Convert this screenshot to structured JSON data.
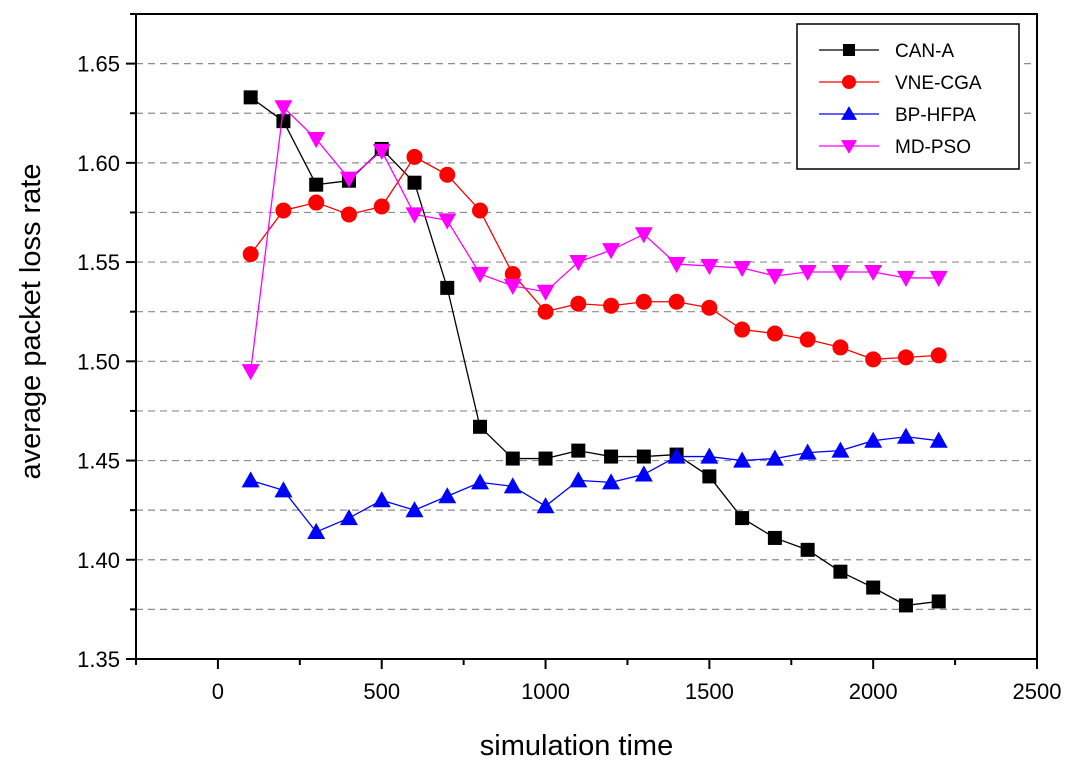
{
  "chart_data": {
    "type": "line",
    "title": "",
    "xlabel": "simulation time",
    "ylabel": "average packet loss rate",
    "xlim": [
      -250,
      2500
    ],
    "ylim": [
      1.35,
      1.675
    ],
    "xticks": [
      0,
      500,
      1000,
      1500,
      2000,
      2500
    ],
    "xtick_labels": [
      "0",
      "500",
      "1000",
      "1500",
      "2000",
      "2500"
    ],
    "yticks": [
      1.35,
      1.4,
      1.45,
      1.5,
      1.55,
      1.6,
      1.65
    ],
    "ytick_labels": [
      "1.35",
      "1.40",
      "1.45",
      "1.50",
      "1.55",
      "1.60",
      "1.65"
    ],
    "grid_y": [
      1.375,
      1.4,
      1.425,
      1.45,
      1.475,
      1.5,
      1.525,
      1.55,
      1.575,
      1.6,
      1.625,
      1.65
    ],
    "legend_position": "top-right",
    "x": [
      100,
      200,
      300,
      400,
      500,
      600,
      700,
      800,
      900,
      1000,
      1100,
      1200,
      1300,
      1400,
      1500,
      1600,
      1700,
      1800,
      1900,
      2000,
      2100,
      2200
    ],
    "series": [
      {
        "name": "CAN-A",
        "color": "#000000",
        "marker": "square",
        "values": [
          1.633,
          1.621,
          1.589,
          1.591,
          1.607,
          1.59,
          1.537,
          1.467,
          1.451,
          1.451,
          1.455,
          1.452,
          1.452,
          1.453,
          1.442,
          1.421,
          1.411,
          1.405,
          1.394,
          1.386,
          1.377,
          1.379
        ]
      },
      {
        "name": "VNE-CGA",
        "color": "#ff0000",
        "marker": "circle",
        "values": [
          1.554,
          1.576,
          1.58,
          1.574,
          1.578,
          1.603,
          1.594,
          1.576,
          1.544,
          1.525,
          1.529,
          1.528,
          1.53,
          1.53,
          1.527,
          1.516,
          1.514,
          1.511,
          1.507,
          1.501,
          1.502,
          1.503
        ]
      },
      {
        "name": "BP-HFPA",
        "color": "#0000ff",
        "marker": "triangle-up",
        "values": [
          1.44,
          1.435,
          1.414,
          1.421,
          1.43,
          1.425,
          1.432,
          1.439,
          1.437,
          1.427,
          1.44,
          1.439,
          1.443,
          1.452,
          1.452,
          1.45,
          1.451,
          1.454,
          1.455,
          1.46,
          1.462,
          1.46
        ]
      },
      {
        "name": "MD-PSO",
        "color": "#ff00ff",
        "marker": "triangle-down",
        "values": [
          1.495,
          1.628,
          1.612,
          1.592,
          1.606,
          1.574,
          1.571,
          1.544,
          1.538,
          1.535,
          1.55,
          1.556,
          1.564,
          1.549,
          1.548,
          1.547,
          1.543,
          1.545,
          1.545,
          1.545,
          1.542,
          1.542
        ]
      }
    ]
  }
}
